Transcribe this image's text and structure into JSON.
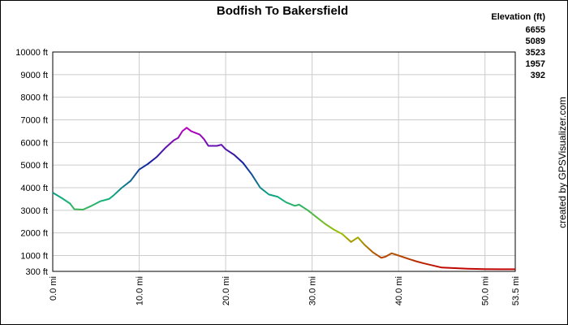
{
  "chart_data": {
    "type": "line",
    "title": "Bodfish To Bakersfield",
    "credit": "created by GPSVisualizer.com",
    "legend_title": "Elevation (ft)",
    "legend": [
      {
        "value": 6655,
        "color": "#c000c0"
      },
      {
        "value": 5089,
        "color": "#1020a0"
      },
      {
        "value": 3523,
        "color": "#10b080"
      },
      {
        "value": 1957,
        "color": "#a0c000"
      },
      {
        "value": 392,
        "color": "#c00000"
      }
    ],
    "x": [
      0,
      1,
      2,
      2.5,
      3.5,
      4.5,
      5.5,
      6.5,
      7,
      8,
      9,
      10,
      11,
      12,
      13,
      14,
      14.5,
      15,
      15.5,
      16,
      17,
      17.5,
      18,
      19,
      19.5,
      20,
      21,
      22,
      23,
      24,
      25,
      26,
      27,
      28,
      28.5,
      29.5,
      30.5,
      31.5,
      32.5,
      33.5,
      34.5,
      35.3,
      36,
      37,
      38,
      38.5,
      39.2,
      40,
      41,
      42,
      43,
      44,
      45,
      46,
      48,
      50,
      52,
      53.5
    ],
    "values": [
      3780,
      3550,
      3300,
      3050,
      3030,
      3200,
      3400,
      3500,
      3650,
      4000,
      4300,
      4800,
      5050,
      5350,
      5750,
      6100,
      6200,
      6500,
      6650,
      6500,
      6350,
      6150,
      5850,
      5850,
      5900,
      5700,
      5450,
      5100,
      4600,
      4000,
      3700,
      3600,
      3350,
      3200,
      3250,
      3000,
      2700,
      2400,
      2150,
      1950,
      1600,
      1800,
      1500,
      1150,
      900,
      950,
      1100,
      1000,
      870,
      750,
      650,
      560,
      470,
      450,
      420,
      400,
      395,
      392
    ],
    "xlim": [
      0,
      53.5
    ],
    "xticks": [
      {
        "value": 0,
        "label": "0.0 mi"
      },
      {
        "value": 10,
        "label": "10.0 mi"
      },
      {
        "value": 20,
        "label": "20.0 mi"
      },
      {
        "value": 30,
        "label": "30.0 mi"
      },
      {
        "value": 40,
        "label": "40.0 mi"
      },
      {
        "value": 50,
        "label": "50.0 mi"
      },
      {
        "value": 53.5,
        "label": "53.5 mi"
      }
    ],
    "ylim": [
      300,
      10000
    ],
    "yticks": [
      {
        "value": 300,
        "label": "300 ft"
      },
      {
        "value": 1000,
        "label": "1000 ft"
      },
      {
        "value": 2000,
        "label": "2000 ft"
      },
      {
        "value": 3000,
        "label": "3000 ft"
      },
      {
        "value": 4000,
        "label": "4000 ft"
      },
      {
        "value": 5000,
        "label": "5000 ft"
      },
      {
        "value": 6000,
        "label": "6000 ft"
      },
      {
        "value": 7000,
        "label": "7000 ft"
      },
      {
        "value": 8000,
        "label": "8000 ft"
      },
      {
        "value": 9000,
        "label": "9000 ft"
      },
      {
        "value": 10000,
        "label": "10000 ft"
      }
    ],
    "grid": true
  }
}
